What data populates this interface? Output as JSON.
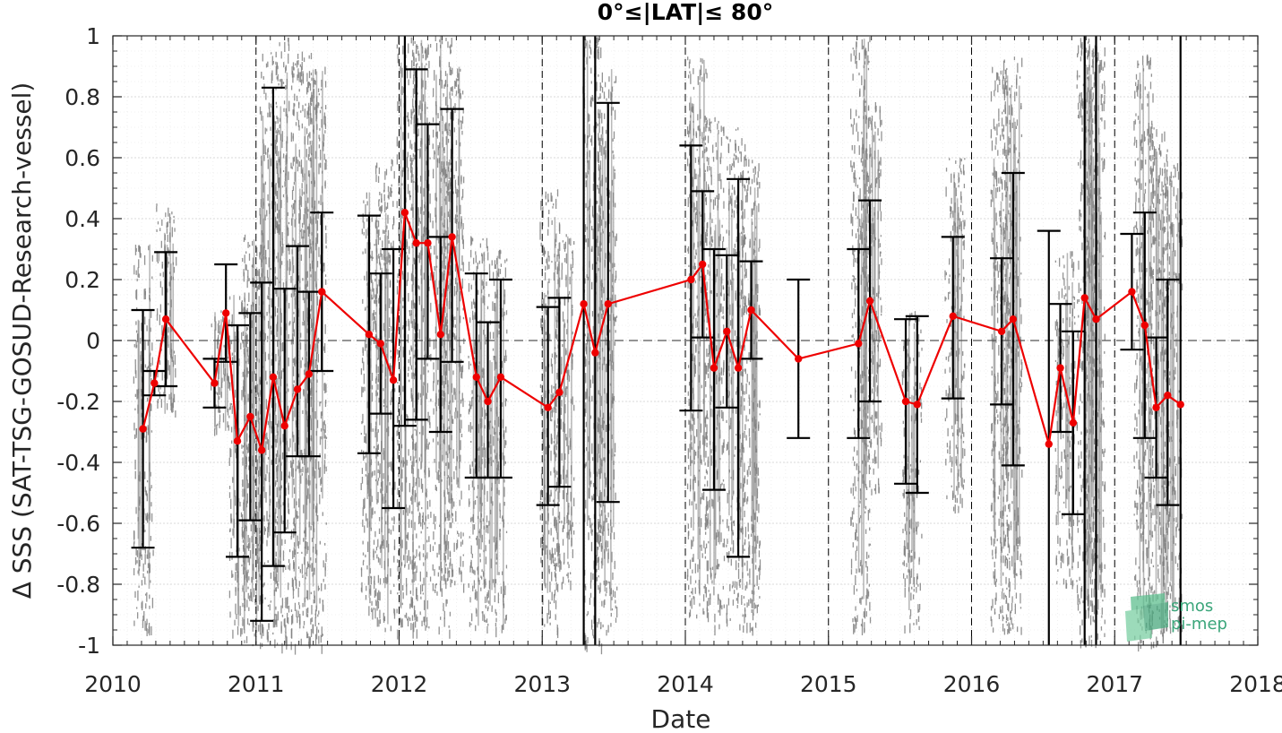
{
  "chart_data": {
    "type": "scatter",
    "title": "0°≤|LAT|≤ 80°",
    "xlabel": "Date",
    "ylabel": "Δ SSS (SAT-TSG-GOSUD-Research-vessel)",
    "xlim": [
      2010,
      2018
    ],
    "ylim": [
      -1,
      1
    ],
    "x_ticks": [
      2010,
      2011,
      2012,
      2013,
      2014,
      2015,
      2016,
      2017,
      2018
    ],
    "x_tick_labels": [
      "2010",
      "2011",
      "2012",
      "2013",
      "2014",
      "2015",
      "2016",
      "2017",
      "2018"
    ],
    "y_ticks": [
      -1,
      -0.8,
      -0.6,
      -0.4,
      -0.2,
      0,
      0.2,
      0.4,
      0.6,
      0.8,
      1
    ],
    "y_tick_labels": [
      "-1",
      "-0.8",
      "-0.6",
      "-0.4",
      "-0.2",
      "0",
      "0.2",
      "0.4",
      "0.6",
      "0.8",
      "1"
    ],
    "grid": true,
    "zero_line": 0,
    "year_boundaries": [
      2011,
      2012,
      2013,
      2014,
      2015,
      2016,
      2017
    ],
    "colors": {
      "mean_line": "#ee0000",
      "error_bars": "#000000",
      "scatter": "#808080",
      "grid": "#d9d9d9"
    },
    "monthly_series": {
      "x": [
        2010.21,
        2010.29,
        2010.37,
        2010.71,
        2010.79,
        2010.87,
        2010.96,
        2011.04,
        2011.12,
        2011.2,
        2011.29,
        2011.37,
        2011.46,
        2011.79,
        2011.87,
        2011.96,
        2012.04,
        2012.12,
        2012.2,
        2012.29,
        2012.37,
        2012.54,
        2012.62,
        2012.71,
        2013.04,
        2013.12,
        2013.29,
        2013.37,
        2013.46,
        2014.04,
        2014.12,
        2014.2,
        2014.29,
        2014.37,
        2014.46,
        2014.79,
        2015.21,
        2015.29,
        2015.54,
        2015.62,
        2015.87,
        2016.21,
        2016.29,
        2016.54,
        2016.62,
        2016.71,
        2016.79,
        2016.87,
        2017.12,
        2017.21,
        2017.29,
        2017.37,
        2017.46
      ],
      "mean": [
        -0.29,
        -0.14,
        0.07,
        -0.14,
        0.09,
        -0.33,
        -0.25,
        -0.36,
        -0.12,
        -0.28,
        -0.16,
        -0.11,
        0.16,
        0.02,
        -0.01,
        -0.13,
        0.42,
        0.32,
        0.32,
        0.02,
        0.34,
        -0.12,
        -0.2,
        -0.12,
        -0.22,
        -0.17,
        0.12,
        -0.04,
        0.12,
        0.2,
        0.25,
        -0.09,
        0.03,
        -0.09,
        0.1,
        -0.06,
        -0.01,
        0.13,
        -0.2,
        -0.21,
        0.08,
        0.03,
        0.07,
        -0.34,
        -0.09,
        -0.27,
        0.14,
        0.07,
        0.16,
        0.05,
        -0.22,
        -0.18,
        -0.21
      ],
      "lower": [
        -0.68,
        -0.18,
        -0.15,
        -0.22,
        -0.07,
        -0.71,
        -0.59,
        -0.92,
        -0.74,
        -0.63,
        -0.38,
        -0.38,
        -0.1,
        -0.37,
        -0.24,
        -0.55,
        -0.28,
        -0.26,
        -0.06,
        -0.3,
        -0.07,
        -0.45,
        -0.45,
        -0.45,
        -0.54,
        -0.48,
        -1,
        -1,
        -0.53,
        -0.23,
        0.01,
        -0.49,
        -0.22,
        -0.71,
        -0.06,
        -0.32,
        -0.32,
        -0.2,
        -0.47,
        -0.5,
        -0.19,
        -0.21,
        -0.41,
        -1,
        -0.3,
        -0.57,
        -1,
        -1,
        -0.03,
        -0.32,
        -0.45,
        -0.54,
        -1
      ],
      "upper": [
        0.1,
        -0.1,
        0.29,
        -0.06,
        0.25,
        0.05,
        0.09,
        0.19,
        0.83,
        0.17,
        0.31,
        0.16,
        0.42,
        0.41,
        0.22,
        0.3,
        1,
        0.89,
        0.71,
        0.34,
        0.76,
        0.22,
        0.06,
        0.2,
        0.11,
        0.14,
        1,
        1,
        0.78,
        0.64,
        0.49,
        0.3,
        0.28,
        0.53,
        0.26,
        0.2,
        0.3,
        0.46,
        0.07,
        0.08,
        0.34,
        0.27,
        0.55,
        0.36,
        0.12,
        0.03,
        1,
        1,
        0.35,
        0.42,
        0.01,
        0.2,
        1
      ]
    },
    "scatter_clusters": [
      {
        "x": 2010.21,
        "lo": -0.95,
        "hi": 0.32
      },
      {
        "x": 2010.37,
        "lo": -0.25,
        "hi": 0.45
      },
      {
        "x": 2010.75,
        "lo": -0.3,
        "hi": 0.1
      },
      {
        "x": 2010.88,
        "lo": -0.95,
        "hi": 0.15
      },
      {
        "x": 2010.97,
        "lo": -1,
        "hi": 0.35
      },
      {
        "x": 2011.08,
        "lo": -1,
        "hi": 0.95
      },
      {
        "x": 2011.2,
        "lo": -1,
        "hi": 1
      },
      {
        "x": 2011.32,
        "lo": -1,
        "hi": 0.95
      },
      {
        "x": 2011.42,
        "lo": -1,
        "hi": 0.9
      },
      {
        "x": 2011.8,
        "lo": -0.9,
        "hi": 0.5
      },
      {
        "x": 2011.9,
        "lo": -0.95,
        "hi": 0.6
      },
      {
        "x": 2012.05,
        "lo": -0.95,
        "hi": 1
      },
      {
        "x": 2012.15,
        "lo": -0.95,
        "hi": 1
      },
      {
        "x": 2012.3,
        "lo": -0.95,
        "hi": 1
      },
      {
        "x": 2012.38,
        "lo": -0.8,
        "hi": 0.9
      },
      {
        "x": 2012.55,
        "lo": -0.95,
        "hi": 0.35
      },
      {
        "x": 2012.68,
        "lo": -0.95,
        "hi": 0.3
      },
      {
        "x": 2013.05,
        "lo": -0.95,
        "hi": 0.5
      },
      {
        "x": 2013.15,
        "lo": -0.8,
        "hi": 0.35
      },
      {
        "x": 2013.35,
        "lo": -1,
        "hi": 1
      },
      {
        "x": 2013.45,
        "lo": -0.95,
        "hi": 0.9
      },
      {
        "x": 2014.08,
        "lo": -0.9,
        "hi": 0.95
      },
      {
        "x": 2014.2,
        "lo": -0.95,
        "hi": 0.75
      },
      {
        "x": 2014.35,
        "lo": -0.95,
        "hi": 0.7
      },
      {
        "x": 2014.45,
        "lo": -0.95,
        "hi": 0.6
      },
      {
        "x": 2015.22,
        "lo": -0.95,
        "hi": 1
      },
      {
        "x": 2015.3,
        "lo": -0.5,
        "hi": 0.8
      },
      {
        "x": 2015.58,
        "lo": -0.95,
        "hi": 0.1
      },
      {
        "x": 2015.88,
        "lo": -0.55,
        "hi": 0.6
      },
      {
        "x": 2016.2,
        "lo": -0.95,
        "hi": 0.9
      },
      {
        "x": 2016.28,
        "lo": -0.95,
        "hi": 0.95
      },
      {
        "x": 2016.65,
        "lo": -0.8,
        "hi": 0.3
      },
      {
        "x": 2016.8,
        "lo": -1,
        "hi": 1
      },
      {
        "x": 2016.86,
        "lo": -1,
        "hi": 1
      },
      {
        "x": 2017.2,
        "lo": -1,
        "hi": 0.95
      },
      {
        "x": 2017.3,
        "lo": -1,
        "hi": 0.7
      },
      {
        "x": 2017.4,
        "lo": -0.95,
        "hi": 0.6
      }
    ],
    "logo": {
      "line1": "smos",
      "line2": "pi-mep"
    }
  }
}
